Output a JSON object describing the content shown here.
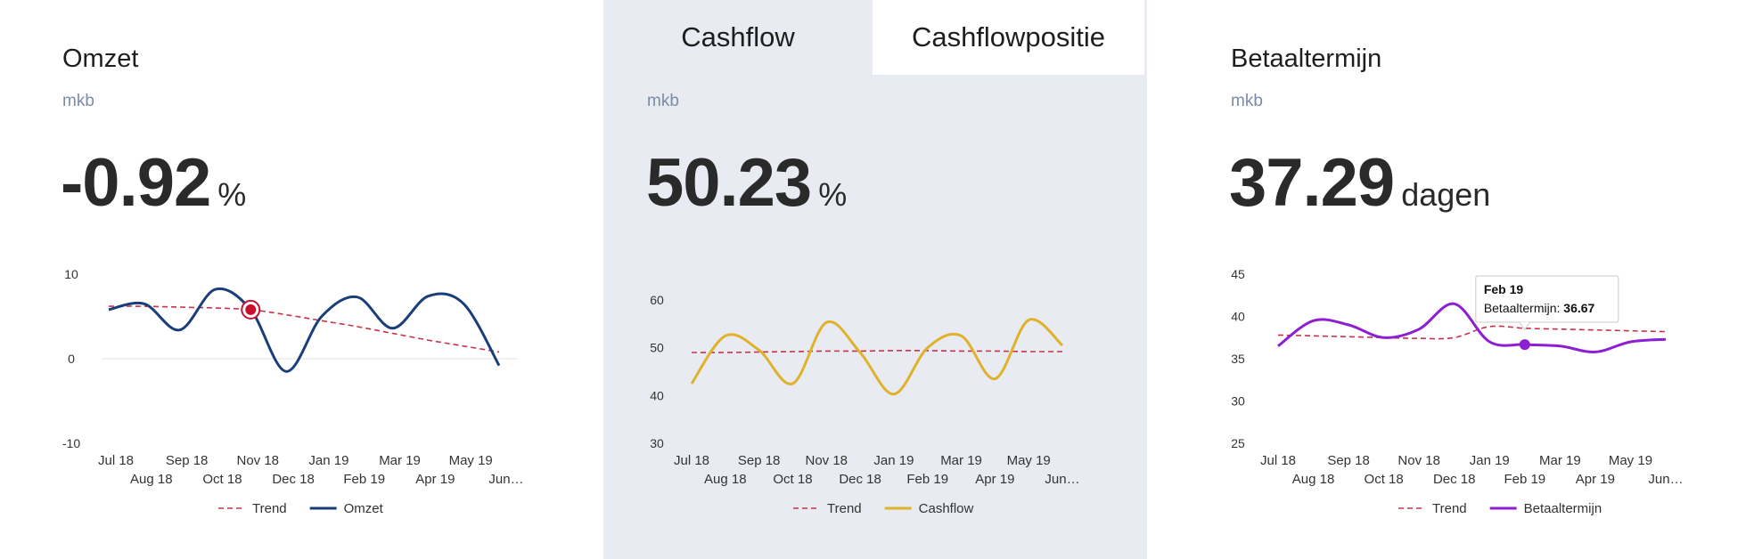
{
  "omzet": {
    "title": "Omzet",
    "subtitle": "mkb",
    "kpi_value": "-0.92",
    "kpi_unit": "%"
  },
  "cashflow": {
    "tabs": [
      "Cashflow",
      "Cashflowpositie"
    ],
    "active_tab": "Cashflowpositie",
    "subtitle": "mkb",
    "kpi_value": "50.23",
    "kpi_unit": "%"
  },
  "betaaltermijn": {
    "title": "Betaaltermijn",
    "subtitle": "mkb",
    "kpi_value": "37.29",
    "kpi_unit": "dagen"
  },
  "chart_data": [
    {
      "type": "line",
      "categories": [
        "Jul 18",
        "Aug 18",
        "Sep 18",
        "Oct 18",
        "Nov 18",
        "Dec 18",
        "Jan 19",
        "Feb 19",
        "Mar 19",
        "Apr 19",
        "May 19",
        "Jun…"
      ],
      "yticks": [
        10,
        0,
        -10
      ],
      "ylim": [
        -10,
        10
      ],
      "series": [
        {
          "name": "Trend",
          "style": "dashed",
          "color": "#c8324a",
          "values": [
            6.2,
            6.2,
            6.1,
            6.0,
            5.8,
            5.2,
            4.5,
            3.8,
            3.0,
            2.2,
            1.5,
            0.8
          ]
        },
        {
          "name": "Omzet",
          "style": "solid",
          "color": "#1a3e7a",
          "values": [
            5.8,
            6.5,
            3.4,
            8.2,
            5.8,
            -1.5,
            5.0,
            7.3,
            3.6,
            7.4,
            6.5,
            -0.8
          ]
        }
      ],
      "highlight": {
        "series": 1,
        "index": 4,
        "color": "#c8102e"
      },
      "legend": "bottom"
    },
    {
      "type": "line",
      "categories": [
        "Jul 18",
        "Aug 18",
        "Sep 18",
        "Oct 18",
        "Nov 18",
        "Dec 18",
        "Jan 19",
        "Feb 19",
        "Mar 19",
        "Apr 19",
        "May 19",
        "Jun…"
      ],
      "yticks": [
        60,
        50,
        40,
        30
      ],
      "ylim": [
        30,
        60
      ],
      "series": [
        {
          "name": "Trend",
          "style": "dashed",
          "color": "#c8324a",
          "values": [
            49.0,
            49.0,
            49.1,
            49.2,
            49.3,
            49.3,
            49.4,
            49.4,
            49.3,
            49.3,
            49.2,
            49.2
          ]
        },
        {
          "name": "Cashflow",
          "style": "solid",
          "color": "#e0b22a",
          "values": [
            42.5,
            52.5,
            49.5,
            42.5,
            55.3,
            49.0,
            40.3,
            50.0,
            52.5,
            43.5,
            55.8,
            50.5
          ]
        }
      ],
      "legend": "bottom"
    },
    {
      "type": "line",
      "categories": [
        "Jul 18",
        "Aug 18",
        "Sep 18",
        "Oct 18",
        "Nov 18",
        "Dec 18",
        "Jan 19",
        "Feb 19",
        "Mar 19",
        "Apr 19",
        "May 19",
        "Jun…"
      ],
      "yticks": [
        45,
        40,
        35,
        30,
        25
      ],
      "ylim": [
        25,
        45
      ],
      "series": [
        {
          "name": "Trend",
          "style": "dashed",
          "color": "#c8324a",
          "values": [
            37.8,
            37.7,
            37.6,
            37.5,
            37.4,
            37.5,
            38.8,
            38.6,
            38.5,
            38.4,
            38.3,
            38.2
          ]
        },
        {
          "name": "Betaaltermijn",
          "style": "solid",
          "color": "#8d1ed4",
          "values": [
            36.5,
            39.5,
            39.0,
            37.5,
            38.5,
            41.5,
            37.0,
            36.67,
            36.5,
            35.8,
            37.0,
            37.3
          ]
        }
      ],
      "highlight": {
        "series": 1,
        "index": 7,
        "color": "#8d1ed4"
      },
      "tooltip": {
        "title": "Feb 19",
        "label": "Betaaltermijn:",
        "value": "36.67"
      },
      "legend": "bottom"
    }
  ]
}
